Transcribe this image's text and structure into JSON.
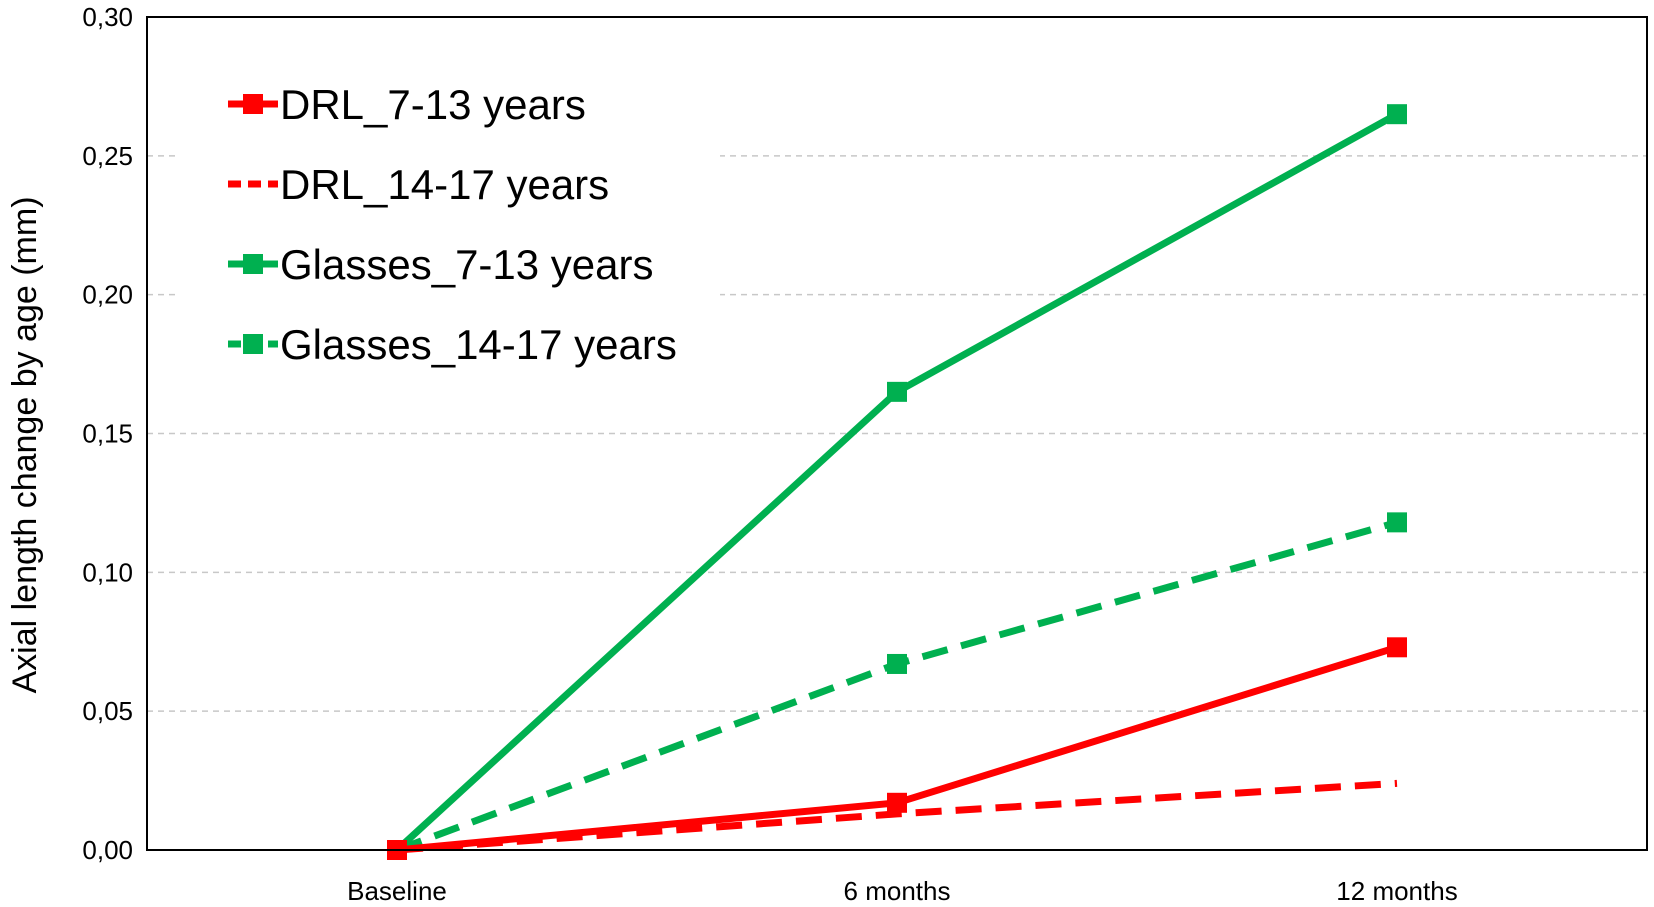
{
  "chart_data": {
    "type": "line",
    "title": "",
    "xlabel": "",
    "ylabel": "Axial length change by age (mm)",
    "categories": [
      "Baseline",
      "6 months",
      "12 months"
    ],
    "ylim": [
      0,
      0.3
    ],
    "yticks": [
      "0,00",
      "0,05",
      "0,10",
      "0,15",
      "0,20",
      "0,25",
      "0,30"
    ],
    "grid": "horizontal dashed",
    "legend_position": "top-left",
    "series": [
      {
        "name": "DRL_7-13 years",
        "values": [
          0.0,
          0.017,
          0.073
        ],
        "color": "#ff0000",
        "style": "solid",
        "marker": "square"
      },
      {
        "name": "DRL_14-17 years",
        "values": [
          0.0,
          0.013,
          0.024
        ],
        "color": "#ff0000",
        "style": "dashed",
        "marker": "none"
      },
      {
        "name": "Glasses_7-13 years",
        "values": [
          0.0,
          0.165,
          0.265
        ],
        "color": "#00b050",
        "style": "solid",
        "marker": "square"
      },
      {
        "name": "Glasses_14-17 years",
        "values": [
          0.0,
          0.067,
          0.118
        ],
        "color": "#00b050",
        "style": "dashed",
        "marker": "square"
      }
    ]
  }
}
